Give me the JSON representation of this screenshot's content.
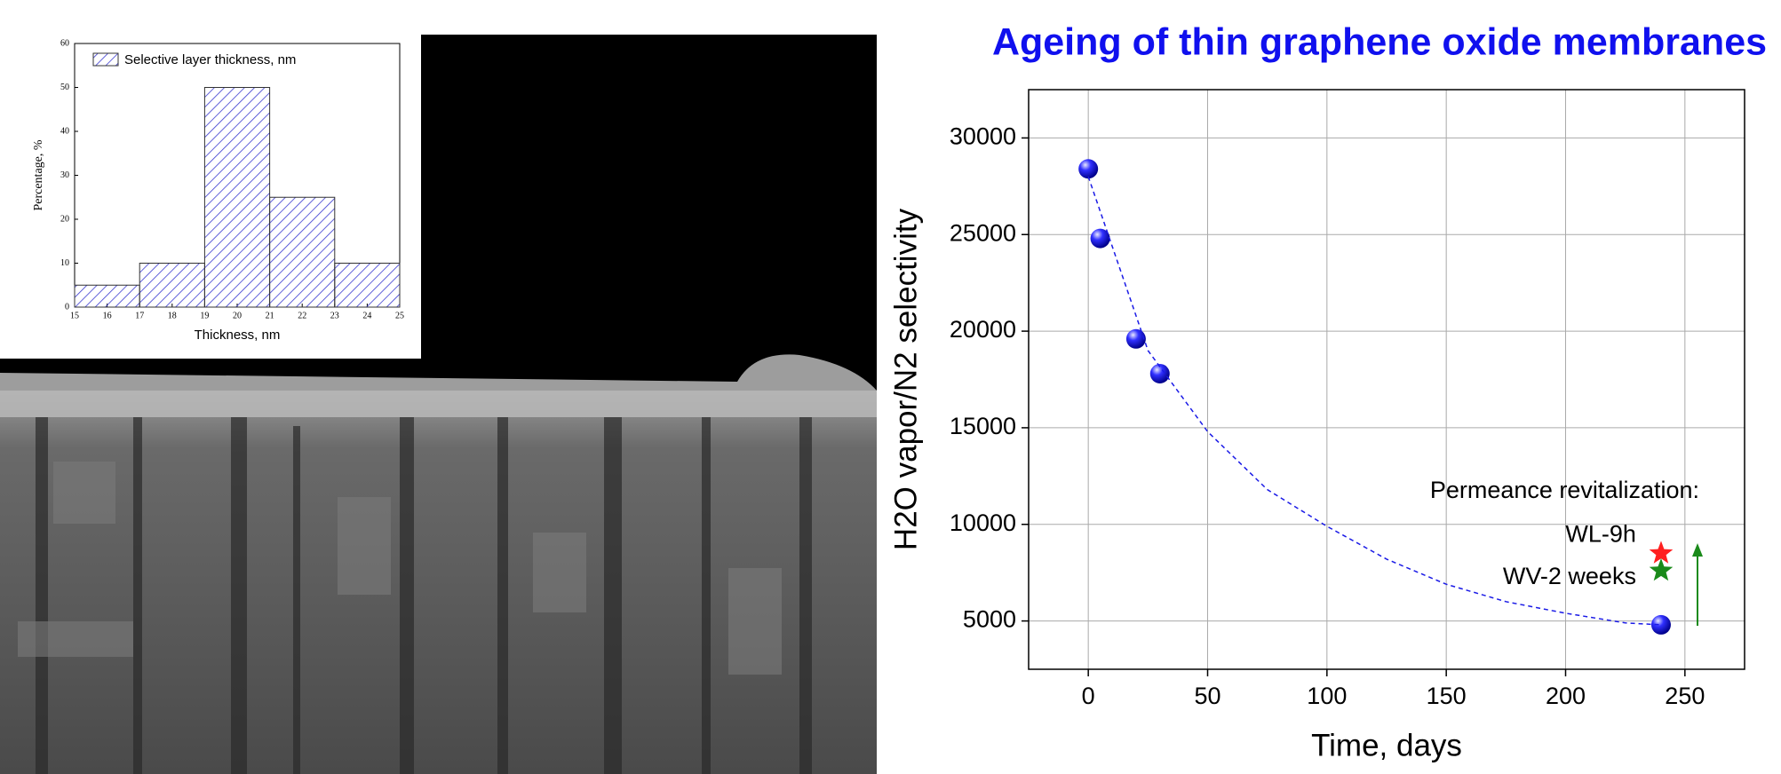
{
  "chart_data": [
    {
      "type": "histogram",
      "xlabel": "Thickness, nm",
      "ylabel": "Percentage, %",
      "bins": [
        15,
        17,
        19,
        21,
        23,
        25
      ],
      "series": [
        {
          "name": "Selective layer thickness, nm",
          "color": "#3a3ad0",
          "values": [
            5,
            10,
            50,
            25,
            10
          ]
        }
      ],
      "xlim": [
        15,
        25
      ],
      "xticks": [
        15,
        16,
        17,
        18,
        19,
        20,
        21,
        22,
        23,
        24,
        25
      ],
      "ylim": [
        0,
        60
      ],
      "yticks": [
        0,
        10,
        20,
        30,
        40,
        50,
        60
      ]
    },
    {
      "type": "scatter",
      "title": "Ageing of thin graphene oxide membranes",
      "xlabel": "Time, days",
      "ylabel": "H2O vapor/N2 selectivity",
      "annotation": "Permeance revitalization:",
      "series": [
        {
          "color": "#1a1ae6",
          "marker": "sphere",
          "x": [
            0,
            5,
            20,
            30,
            240
          ],
          "values": [
            28400,
            24800,
            19600,
            17800,
            4800
          ]
        },
        {
          "color": "#1a1ae6",
          "style": "dashed",
          "x": [
            0,
            25,
            50,
            75,
            100,
            125,
            150,
            175,
            200,
            225,
            240
          ],
          "values": [
            28000,
            19000,
            14800,
            11800,
            9900,
            8200,
            6900,
            6000,
            5400,
            4900,
            4800
          ]
        },
        {
          "name": "WL-9h",
          "color": "#ff2020",
          "marker": "star",
          "x": [
            240
          ],
          "values": [
            8500
          ]
        },
        {
          "name": "WV-2 weeks",
          "color": "#1a8a1a",
          "marker": "star",
          "x": [
            240
          ],
          "values": [
            7600
          ]
        }
      ],
      "xlim": [
        -25,
        275
      ],
      "xticks": [
        0,
        50,
        100,
        150,
        200,
        250
      ],
      "ylim": [
        2500,
        32500
      ],
      "yticks": [
        5000,
        10000,
        15000,
        20000,
        25000,
        30000
      ],
      "grid": true
    }
  ]
}
